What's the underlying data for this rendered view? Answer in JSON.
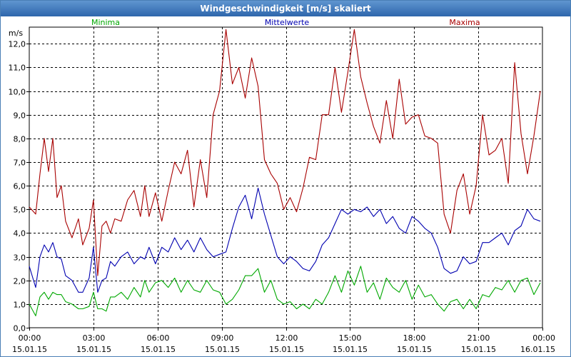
{
  "window": {
    "title": "Windgeschwindigkeit [m/s] skaliert"
  },
  "chart_data": {
    "type": "line",
    "title": "Windgeschwindigkeit [m/s] skaliert",
    "ylabel": "m/s",
    "xlabel": "",
    "ylim": [
      0,
      12.7
    ],
    "xlim": [
      0,
      24
    ],
    "grid": true,
    "legend_position": "top",
    "y_ticks": [
      {
        "value": 0,
        "label": "0,0"
      },
      {
        "value": 1,
        "label": "1,0"
      },
      {
        "value": 2,
        "label": "2,0"
      },
      {
        "value": 3,
        "label": "3,0"
      },
      {
        "value": 4,
        "label": "4,0"
      },
      {
        "value": 5,
        "label": "5,0"
      },
      {
        "value": 6,
        "label": "6,0"
      },
      {
        "value": 7,
        "label": "7,0"
      },
      {
        "value": 8,
        "label": "8,0"
      },
      {
        "value": 9,
        "label": "9,0"
      },
      {
        "value": 10,
        "label": "10,0"
      },
      {
        "value": 11,
        "label": "11,0"
      },
      {
        "value": 12,
        "label": "12,0"
      }
    ],
    "x_ticks": [
      {
        "value": 0,
        "time": "00:00",
        "date": "15.01.15"
      },
      {
        "value": 3,
        "time": "03:00",
        "date": "15.01.15"
      },
      {
        "value": 6,
        "time": "06:00",
        "date": "15.01.15"
      },
      {
        "value": 9,
        "time": "09:00",
        "date": "15.01.15"
      },
      {
        "value": 12,
        "time": "12:00",
        "date": "15.01.15"
      },
      {
        "value": 15,
        "time": "15:00",
        "date": "15.01.15"
      },
      {
        "value": 18,
        "time": "18:00",
        "date": "15.01.15"
      },
      {
        "value": 21,
        "time": "21:00",
        "date": "15.01.15"
      },
      {
        "value": 24,
        "time": "00:00",
        "date": "16.01.15"
      }
    ],
    "series": [
      {
        "name": "Minima",
        "color": "#00a800",
        "x": [
          0,
          0.3,
          0.5,
          0.7,
          0.9,
          1.1,
          1.3,
          1.5,
          1.7,
          2,
          2.3,
          2.5,
          2.8,
          3,
          3.2,
          3.4,
          3.6,
          3.8,
          4,
          4.3,
          4.6,
          4.9,
          5.2,
          5.4,
          5.6,
          5.9,
          6.2,
          6.5,
          6.8,
          7.1,
          7.4,
          7.7,
          8,
          8.3,
          8.6,
          8.9,
          9.2,
          9.5,
          9.8,
          10.1,
          10.4,
          10.7,
          11,
          11.3,
          11.6,
          11.9,
          12.2,
          12.5,
          12.8,
          13.1,
          13.4,
          13.7,
          14,
          14.3,
          14.6,
          14.9,
          15.2,
          15.5,
          15.8,
          16.1,
          16.4,
          16.7,
          17,
          17.3,
          17.6,
          17.9,
          18.2,
          18.5,
          18.8,
          19.1,
          19.4,
          19.7,
          20,
          20.3,
          20.6,
          20.9,
          21.2,
          21.5,
          21.8,
          22.1,
          22.4,
          22.7,
          23,
          23.3,
          23.6,
          23.9
        ],
        "values": [
          1.0,
          0.5,
          1.3,
          1.5,
          1.2,
          1.5,
          1.4,
          1.4,
          1.1,
          1.0,
          0.8,
          0.8,
          0.9,
          1.5,
          0.8,
          0.8,
          0.7,
          1.3,
          1.3,
          1.5,
          1.2,
          1.7,
          1.3,
          2.0,
          1.5,
          1.9,
          2.0,
          1.7,
          2.1,
          1.5,
          2.0,
          1.6,
          1.5,
          2.0,
          1.6,
          1.5,
          1.0,
          1.2,
          1.6,
          2.2,
          2.2,
          2.5,
          1.5,
          2.0,
          1.2,
          1.0,
          1.1,
          0.8,
          1.0,
          0.8,
          1.2,
          1.0,
          1.5,
          2.2,
          1.5,
          2.4,
          1.8,
          2.6,
          1.5,
          1.9,
          1.2,
          2.1,
          1.7,
          1.5,
          2.0,
          1.2,
          1.8,
          1.3,
          1.4,
          1.0,
          0.7,
          1.1,
          1.2,
          0.8,
          1.2,
          0.8,
          1.4,
          1.3,
          1.7,
          1.6,
          2.0,
          1.5,
          2.0,
          2.1,
          1.4,
          1.9
        ]
      },
      {
        "name": "Mittelwerte",
        "color": "#0000b0",
        "x": [
          0,
          0.3,
          0.5,
          0.7,
          0.9,
          1.1,
          1.3,
          1.5,
          1.7,
          2,
          2.3,
          2.5,
          2.8,
          3,
          3.2,
          3.4,
          3.6,
          3.8,
          4,
          4.3,
          4.6,
          4.9,
          5.2,
          5.4,
          5.6,
          5.9,
          6.2,
          6.5,
          6.8,
          7.1,
          7.4,
          7.7,
          8,
          8.3,
          8.6,
          8.9,
          9.2,
          9.5,
          9.8,
          10.1,
          10.4,
          10.7,
          11,
          11.3,
          11.6,
          11.9,
          12.2,
          12.5,
          12.8,
          13.1,
          13.4,
          13.7,
          14,
          14.3,
          14.6,
          14.9,
          15.2,
          15.5,
          15.8,
          16.1,
          16.4,
          16.7,
          17,
          17.3,
          17.6,
          17.9,
          18.2,
          18.5,
          18.8,
          19.1,
          19.4,
          19.7,
          20,
          20.3,
          20.6,
          20.9,
          21.2,
          21.5,
          21.8,
          22.1,
          22.4,
          22.7,
          23,
          23.3,
          23.6,
          23.9
        ],
        "values": [
          2.6,
          1.7,
          3.0,
          3.5,
          3.2,
          3.6,
          3.0,
          2.9,
          2.2,
          2.0,
          1.5,
          1.5,
          2.1,
          3.4,
          1.5,
          2.0,
          2.1,
          2.8,
          2.6,
          3.0,
          3.2,
          2.7,
          3.0,
          2.9,
          3.4,
          2.7,
          3.4,
          3.2,
          3.8,
          3.3,
          3.7,
          3.2,
          3.8,
          3.3,
          3.0,
          3.1,
          3.2,
          4.2,
          5.1,
          5.6,
          4.6,
          5.9,
          4.8,
          3.9,
          3.0,
          2.7,
          3.0,
          2.8,
          2.5,
          2.4,
          2.8,
          3.5,
          3.8,
          4.4,
          5.0,
          4.8,
          5.0,
          4.9,
          5.1,
          4.7,
          5.0,
          4.4,
          4.7,
          4.2,
          4.0,
          4.7,
          4.5,
          4.2,
          4.0,
          3.4,
          2.5,
          2.3,
          2.4,
          3.0,
          2.7,
          2.8,
          3.6,
          3.6,
          3.8,
          4.0,
          3.5,
          4.1,
          4.3,
          5.0,
          4.6,
          4.5
        ]
      },
      {
        "name": "Maxima",
        "color": "#a80000",
        "x": [
          0,
          0.3,
          0.5,
          0.7,
          0.9,
          1.1,
          1.3,
          1.5,
          1.7,
          2,
          2.3,
          2.5,
          2.8,
          3,
          3.2,
          3.4,
          3.6,
          3.8,
          4,
          4.3,
          4.6,
          4.9,
          5.2,
          5.4,
          5.6,
          5.9,
          6.2,
          6.5,
          6.8,
          7.1,
          7.4,
          7.7,
          8,
          8.3,
          8.6,
          8.9,
          9.2,
          9.5,
          9.8,
          10.1,
          10.4,
          10.7,
          11,
          11.3,
          11.6,
          11.9,
          12.2,
          12.5,
          12.8,
          13.1,
          13.4,
          13.7,
          14,
          14.3,
          14.6,
          14.9,
          15.2,
          15.5,
          15.8,
          16.1,
          16.4,
          16.7,
          17,
          17.3,
          17.6,
          17.9,
          18.2,
          18.5,
          18.8,
          19.1,
          19.4,
          19.7,
          20,
          20.3,
          20.6,
          20.9,
          21.2,
          21.5,
          21.8,
          22.1,
          22.4,
          22.7,
          23,
          23.3,
          23.6,
          23.9
        ],
        "values": [
          5.1,
          4.8,
          6.5,
          8.0,
          6.6,
          8.0,
          5.5,
          6.0,
          4.5,
          3.8,
          4.6,
          3.5,
          4.2,
          5.4,
          2.2,
          4.3,
          4.5,
          4.0,
          4.6,
          4.5,
          5.4,
          5.8,
          4.7,
          6.0,
          4.7,
          5.7,
          4.5,
          5.8,
          7.0,
          6.5,
          7.5,
          5.1,
          7.1,
          5.5,
          9.0,
          10.0,
          12.6,
          10.3,
          11.0,
          9.7,
          11.4,
          10.2,
          7.1,
          6.5,
          6.1,
          5.0,
          5.5,
          4.9,
          5.9,
          7.2,
          7.1,
          9.0,
          9.0,
          11.0,
          9.1,
          10.8,
          12.6,
          10.6,
          9.5,
          8.5,
          7.8,
          9.6,
          8.0,
          10.5,
          8.6,
          8.9,
          9.0,
          8.1,
          8.0,
          7.8,
          4.8,
          4.0,
          5.8,
          6.5,
          4.8,
          6.0,
          9.0,
          7.3,
          7.5,
          8.0,
          6.1,
          11.2,
          8.2,
          6.5,
          8.1,
          10.0
        ]
      }
    ]
  }
}
